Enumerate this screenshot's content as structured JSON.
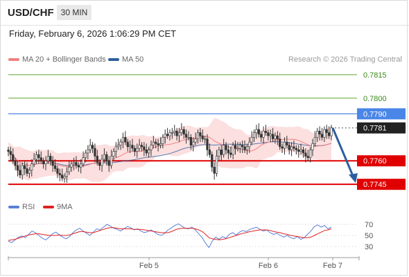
{
  "header": {
    "symbol": "USD/CHF",
    "timeframe": "30 MIN"
  },
  "timestamp": "Friday, February 6, 2026 1:06:29 PM CET",
  "legend": {
    "ma20": "MA 20 + Bollinger Bands",
    "ma50": "MA 50",
    "ma20_color": "#f08080",
    "ma50_color": "#2c5f9e"
  },
  "credit": "Research © 2026 Trading Central",
  "rsi_legend": {
    "rsi": "RSI",
    "ma": "9MA",
    "rsi_color": "#5b7fd6",
    "ma_color": "#e02020"
  },
  "colors": {
    "support": "#e00000",
    "resistance_blue": "#4a86e8",
    "target_green": "#5aa02c",
    "candle_up": "#d9d9d9",
    "candle_down": "#333333",
    "arrow": "#2c5f9e"
  },
  "chart_data": [
    {
      "type": "candlestick",
      "symbol": "USD/CHF",
      "timeframe": "30 MIN",
      "y_range": [
        0.7738,
        0.7822
      ],
      "x_ticks": [
        "Feb 5",
        "Feb 6",
        "Feb 7"
      ],
      "levels": [
        {
          "value": "0.7815",
          "kind": "resistance",
          "color": "#5aa02c"
        },
        {
          "value": "0.7800",
          "kind": "resistance",
          "color": "#5aa02c"
        },
        {
          "value": "0.7790",
          "kind": "pivot",
          "color": "#4a86e8"
        },
        {
          "value": "0.7781",
          "kind": "last",
          "color": "#333333"
        },
        {
          "value": "0.7760",
          "kind": "support",
          "color": "#e00000"
        },
        {
          "value": "0.7745",
          "kind": "support",
          "color": "#e00000"
        }
      ],
      "close": [
        0.7766,
        0.7764,
        0.776,
        0.7757,
        0.7754,
        0.7751,
        0.7757,
        0.7755,
        0.7752,
        0.7754,
        0.7758,
        0.7761,
        0.7764,
        0.7762,
        0.776,
        0.7758,
        0.776,
        0.7763,
        0.776,
        0.7757,
        0.7755,
        0.7752,
        0.7751,
        0.7749,
        0.775,
        0.7753,
        0.7756,
        0.7758,
        0.7759,
        0.7757,
        0.7756,
        0.7758,
        0.7762,
        0.7765,
        0.7767,
        0.777,
        0.7768,
        0.7763,
        0.7759,
        0.7757,
        0.7761,
        0.7764,
        0.776,
        0.7757,
        0.7763,
        0.7766,
        0.7769,
        0.777,
        0.7772,
        0.7775,
        0.7772,
        0.7769,
        0.777,
        0.7768,
        0.7766,
        0.7768,
        0.777,
        0.7769,
        0.7767,
        0.7765,
        0.7767,
        0.777,
        0.7772,
        0.7771,
        0.777,
        0.7771,
        0.7775,
        0.7777,
        0.7776,
        0.7778,
        0.7778,
        0.7779,
        0.7776,
        0.7778,
        0.778,
        0.7777,
        0.7775,
        0.7775,
        0.777,
        0.7772,
        0.7774,
        0.7778,
        0.7776,
        0.7774,
        0.7774,
        0.7767,
        0.7764,
        0.7756,
        0.7752,
        0.7763,
        0.7767,
        0.7764,
        0.777,
        0.7767,
        0.7765,
        0.7764,
        0.777,
        0.7768,
        0.7768,
        0.777,
        0.7769,
        0.7767,
        0.7769,
        0.7772,
        0.7775,
        0.7778,
        0.778,
        0.7777,
        0.7775,
        0.7779,
        0.7778,
        0.7776,
        0.7777,
        0.7774,
        0.7776,
        0.7774,
        0.7769,
        0.7768,
        0.7772,
        0.777,
        0.7767,
        0.7769,
        0.7768,
        0.7767,
        0.7766,
        0.7767,
        0.7765,
        0.7763,
        0.7762,
        0.7767,
        0.7771,
        0.7775,
        0.7779,
        0.7777,
        0.7775,
        0.778,
        0.7778,
        0.7776,
        0.7781
      ]
    },
    {
      "type": "line",
      "name": "RSI",
      "y_ticks": [
        "70",
        "50",
        "30"
      ],
      "x_ticks": [
        "Feb 5",
        "Feb 6",
        "Feb 7"
      ],
      "series": [
        {
          "name": "RSI",
          "values": [
            40,
            37,
            42,
            47,
            49,
            46,
            52,
            58,
            55,
            50,
            45,
            42,
            47,
            53,
            56,
            51,
            47,
            44,
            48,
            55,
            60,
            63,
            58,
            54,
            50,
            56,
            62,
            60,
            65,
            70,
            67,
            63,
            61,
            58,
            62,
            66,
            64,
            60,
            62,
            58,
            55,
            57,
            60,
            56,
            52,
            50,
            54,
            60,
            64,
            68,
            71,
            67,
            63,
            62,
            65,
            60,
            53,
            46,
            36,
            28,
            40,
            47,
            43,
            48,
            45,
            52,
            55,
            51,
            56,
            59,
            57,
            61,
            63,
            65,
            61,
            58,
            60,
            55,
            52,
            54,
            50,
            47,
            50,
            46,
            44,
            48,
            43,
            46,
            52,
            58,
            66,
            69,
            65,
            68,
            62,
            65
          ]
        },
        {
          "name": "9MA",
          "values": [
            41,
            42,
            43,
            45,
            47,
            49,
            51,
            52,
            53,
            53,
            52,
            51,
            50,
            50,
            50,
            51,
            50,
            50,
            51,
            53,
            55,
            57,
            57,
            56,
            55,
            55,
            57,
            59,
            61,
            63,
            64,
            64,
            63,
            62,
            62,
            62,
            62,
            61,
            61,
            61,
            60,
            59,
            58,
            57,
            56,
            55,
            55,
            55,
            57,
            60,
            62,
            63,
            63,
            63,
            63,
            62,
            60,
            57,
            52,
            46,
            44,
            43,
            42,
            43,
            44,
            46,
            48,
            50,
            52,
            54,
            55,
            57,
            58,
            59,
            60,
            60,
            60,
            59,
            57,
            56,
            55,
            53,
            52,
            50,
            49,
            48,
            47,
            46,
            46,
            47,
            50,
            53,
            56,
            59,
            60,
            62
          ]
        }
      ]
    }
  ]
}
